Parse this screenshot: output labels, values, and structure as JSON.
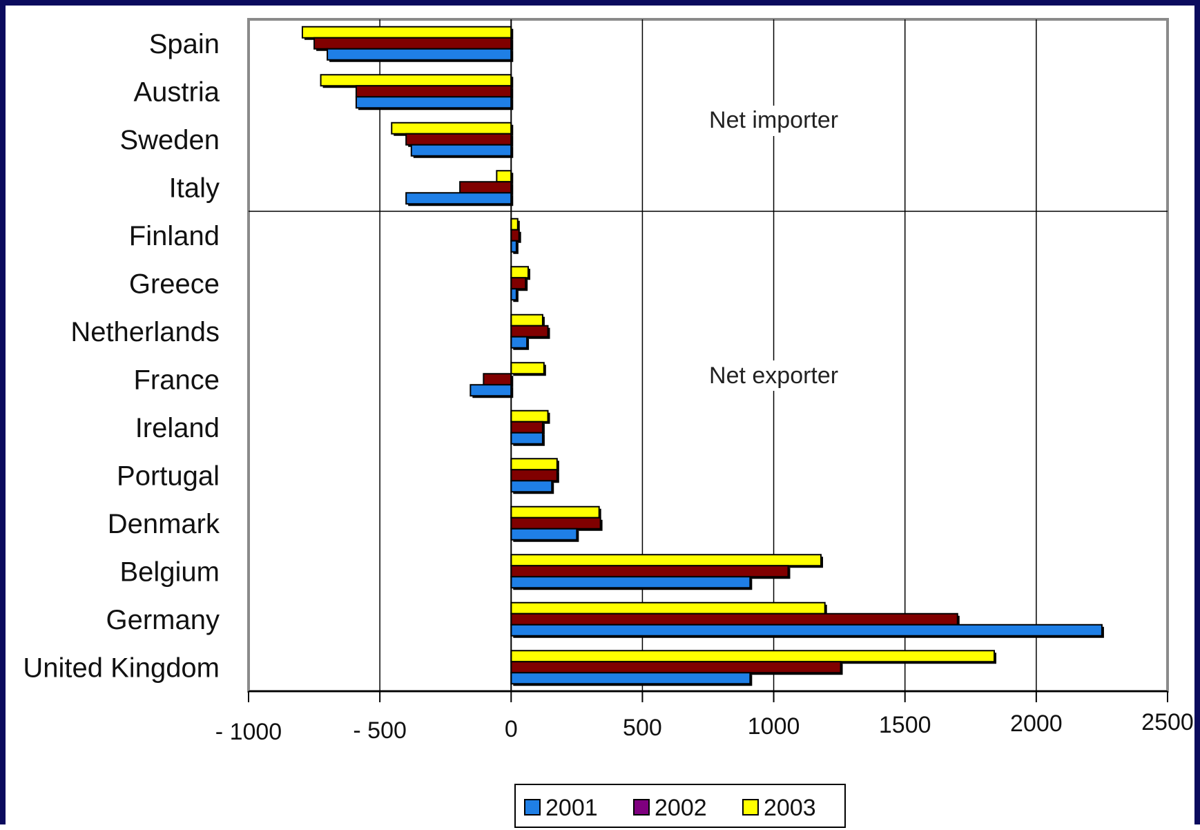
{
  "chart_data": {
    "type": "bar",
    "orientation": "horizontal",
    "categories": [
      "Spain",
      "Austria",
      "Sweden",
      "Italy",
      "Finland",
      "Greece",
      "Netherlands",
      "France",
      "Ireland",
      "Portugal",
      "Denmark",
      "Belgium",
      "Germany",
      "United Kingdom"
    ],
    "series": [
      {
        "name": "2001",
        "color": "#1f7fe6",
        "values": [
          -700,
          -590,
          -380,
          -400,
          20,
          20,
          60,
          -155,
          120,
          155,
          250,
          910,
          2250,
          910
        ]
      },
      {
        "name": "2002",
        "color": "#800000",
        "values": [
          -750,
          -590,
          -400,
          -195,
          30,
          55,
          140,
          -105,
          120,
          175,
          340,
          1055,
          1700,
          1255
        ]
      },
      {
        "name": "2003",
        "color": "#ffff00",
        "values": [
          -795,
          -725,
          -455,
          -55,
          25,
          65,
          120,
          125,
          140,
          175,
          335,
          1180,
          1195,
          1840
        ]
      }
    ],
    "xlim": [
      -1000,
      2500
    ],
    "xticks": [
      -1000,
      -500,
      0,
      500,
      1000,
      1500,
      2000,
      2500
    ],
    "xtick_labels": [
      "- 1000",
      "- 500",
      "0",
      "500",
      "1000",
      "1500",
      "2000",
      "2500"
    ],
    "annotations": [
      "Net importer",
      "Net exporter"
    ],
    "title": "",
    "xlabel": "",
    "ylabel": "",
    "grid": "vertical",
    "legend_position": "bottom"
  }
}
